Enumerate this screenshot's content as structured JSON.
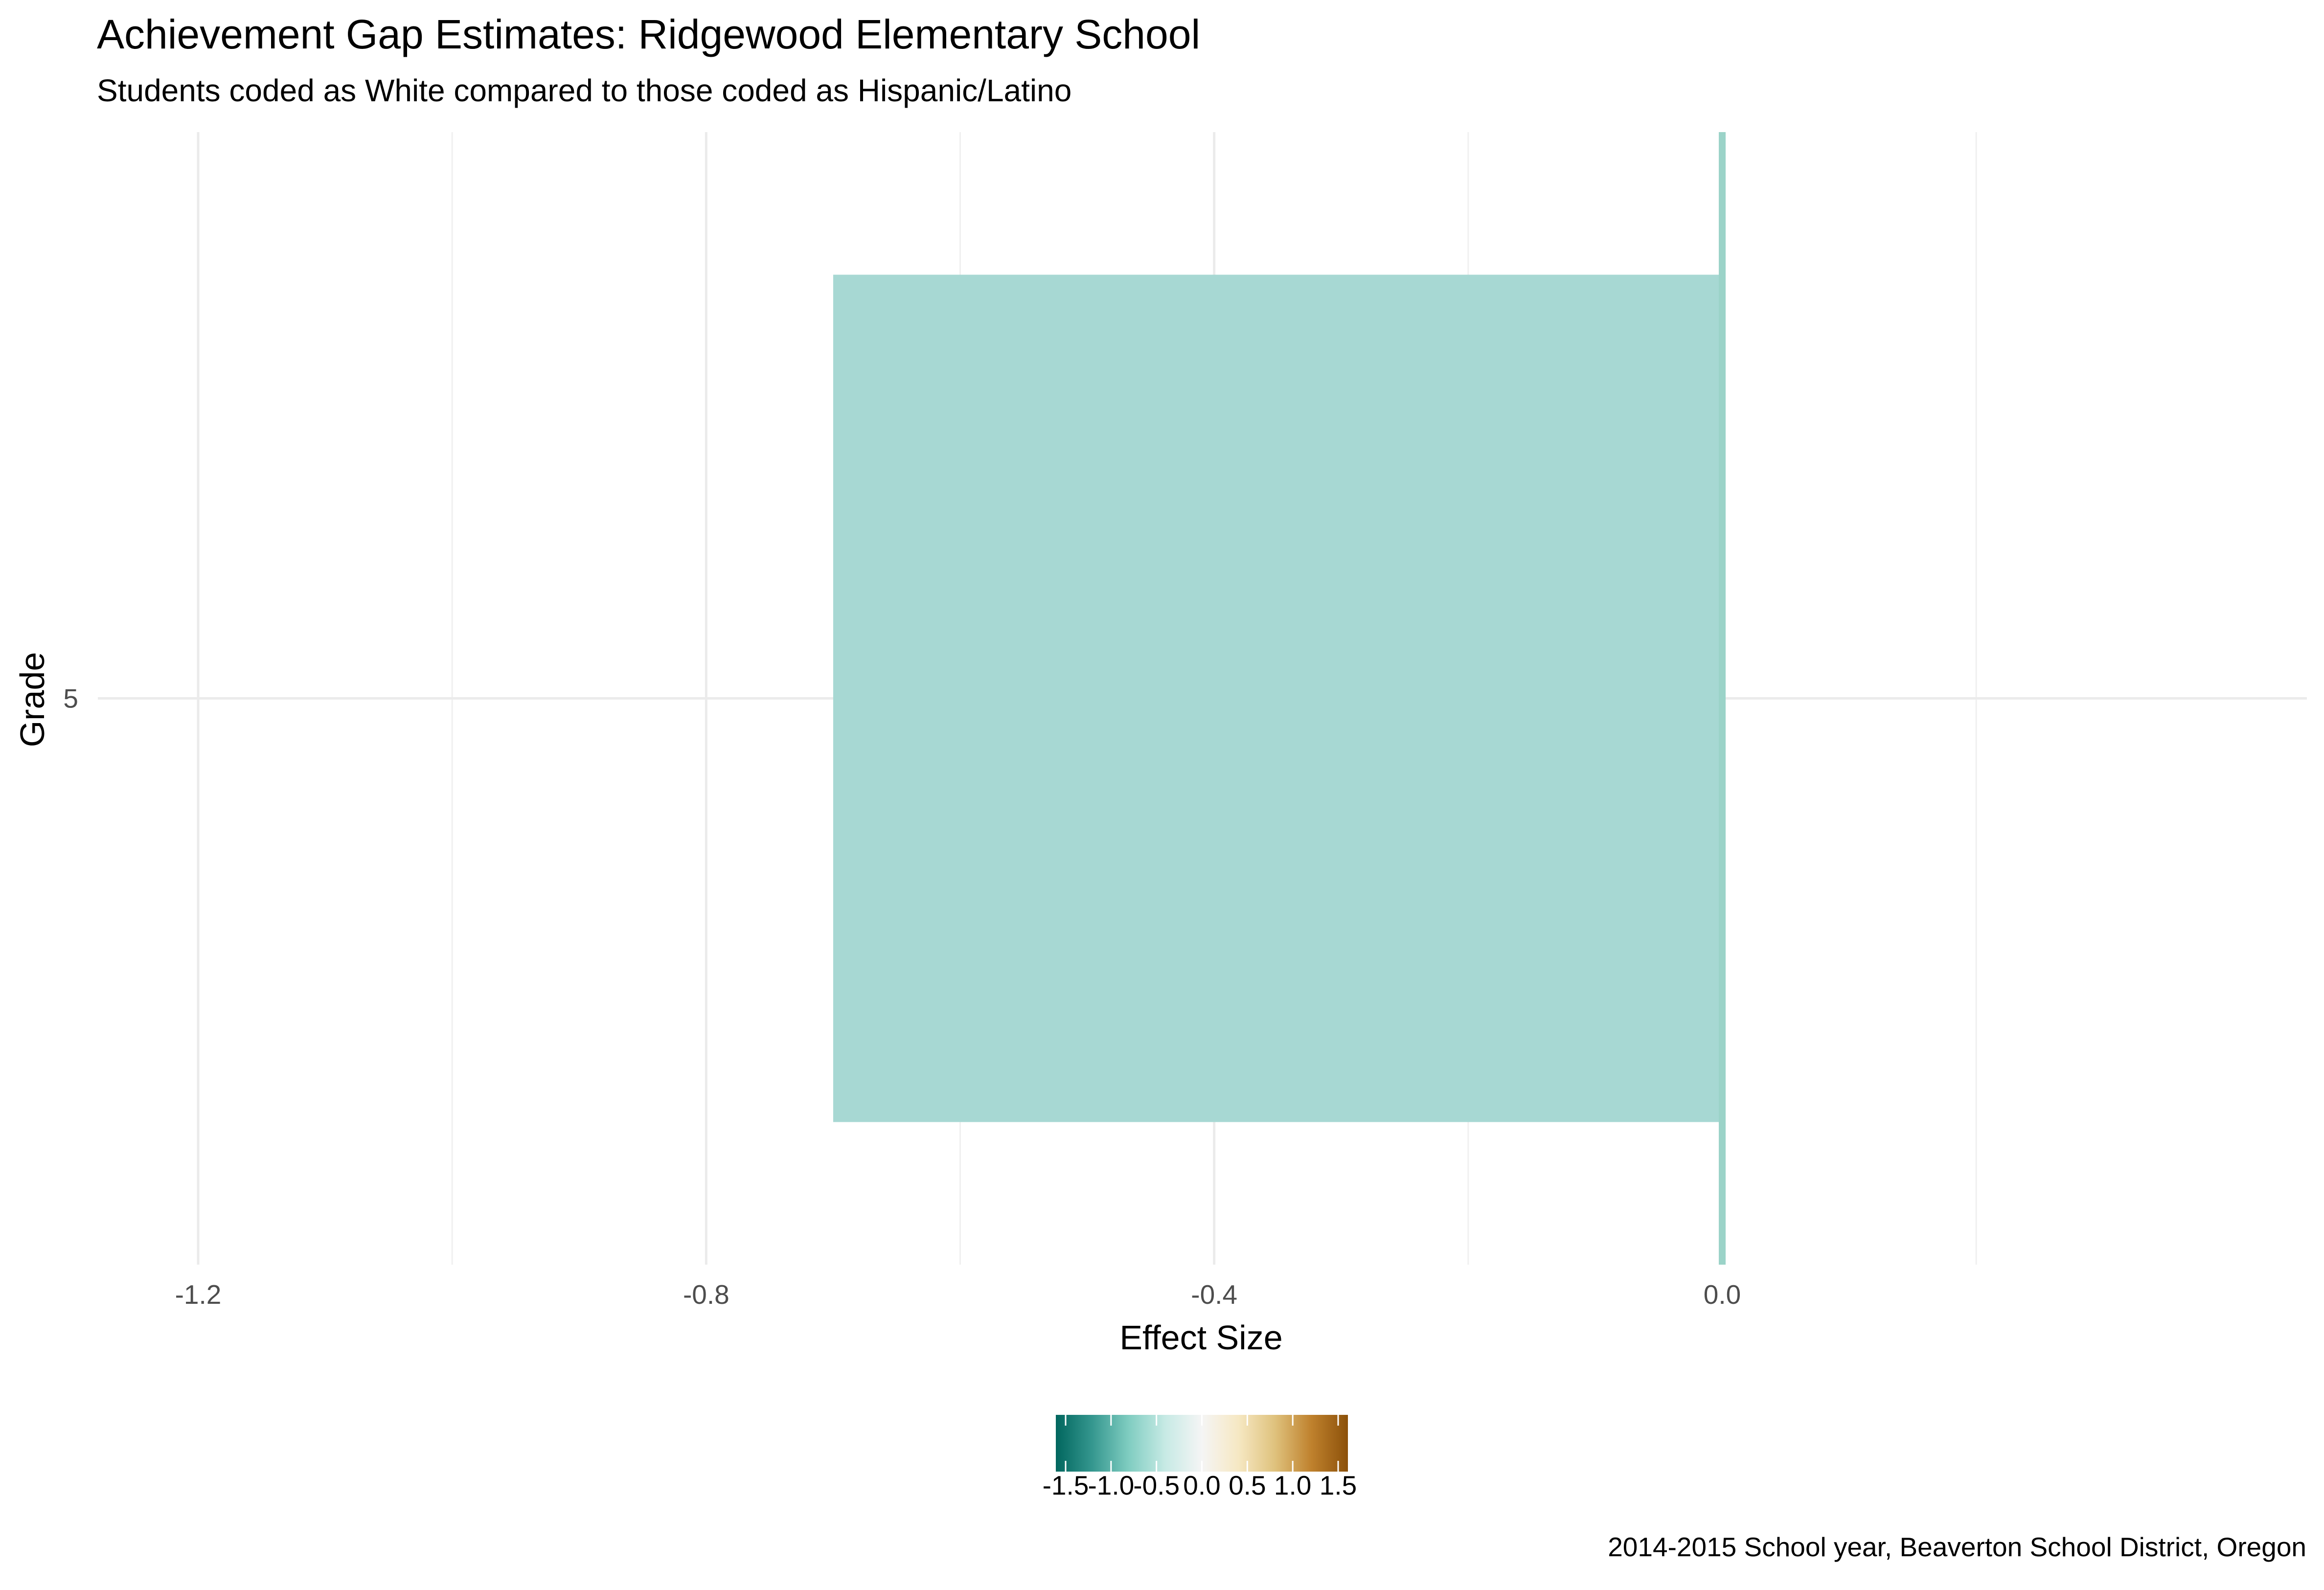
{
  "chart_data": {
    "type": "bar",
    "orientation": "horizontal",
    "title": "Achievement Gap Estimates: Ridgewood Elementary School",
    "subtitle": "Students coded as White compared to those coded as Hispanic/Latino",
    "caption": "2014-2015 School year, Beaverton School District, Oregon",
    "xlabel": "Effect Size",
    "ylabel": "Grade",
    "categories": [
      "5"
    ],
    "values": [
      -0.7
    ],
    "xlim": [
      -1.2,
      0.2
    ],
    "x_ticks": [
      -1.2,
      -0.8,
      -0.4,
      0.0
    ],
    "x_tick_labels": [
      "-1.2",
      "-0.8",
      "-0.4",
      "0.0"
    ],
    "grid": true,
    "reference_line": 0.0,
    "bar_color": "#a7d8d3",
    "reference_line_color": "#9bd3c8",
    "legend": {
      "position": "bottom",
      "type": "colorbar",
      "range": [
        -1.5,
        1.5
      ],
      "ticks": [
        -1.5,
        -1.0,
        -0.5,
        0.0,
        0.5,
        1.0,
        1.5
      ],
      "tick_labels": [
        "-1.5",
        "-1.0",
        "-0.5",
        "0.0",
        "0.5",
        "1.0",
        "1.5"
      ],
      "palette": [
        "#01665e",
        "#35978f",
        "#80cdc1",
        "#c7eae5",
        "#f5f5f5",
        "#f6e8c3",
        "#dfc27d",
        "#bf812d",
        "#8c510a"
      ]
    }
  }
}
